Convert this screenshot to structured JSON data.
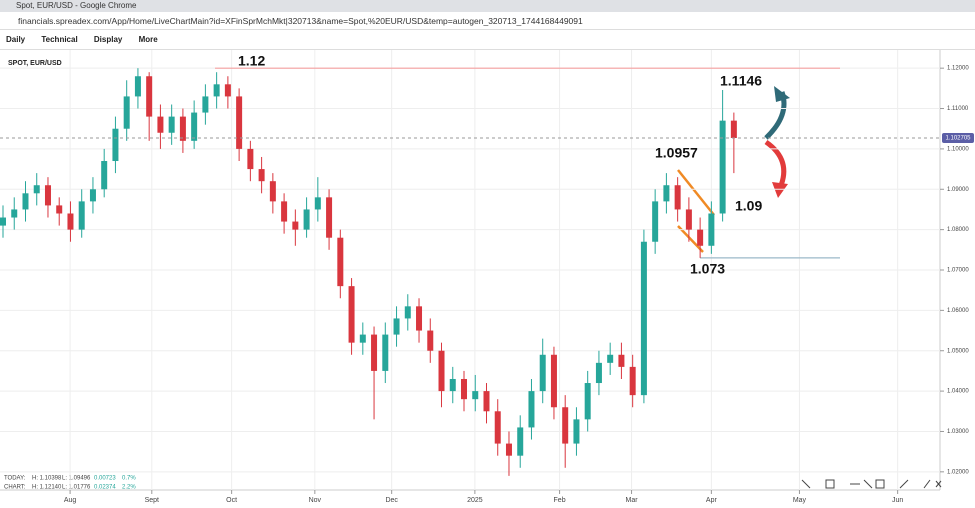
{
  "browser": {
    "title": "Spot, EUR/USD - Google Chrome",
    "url": "financials.spreadex.com/App/Home/LiveChartMain?id=XFinSprMchMkt|320713&name=Spot,%20EUR/USD&temp=autogen_320713_1744168449091"
  },
  "toolbar": [
    "Daily",
    "Technical",
    "Display",
    "More"
  ],
  "stats": {
    "today": [
      "TODAY:",
      "H: 1.10398",
      "L: 1.09496",
      "0.00723",
      "0.7%"
    ],
    "chart": [
      "CHART:",
      "H: 1.12140",
      "L: 1.01776",
      "0.02374",
      "2.2%"
    ]
  },
  "chart_data": {
    "type": "candlestick",
    "title": "SPOT, EUR/USD",
    "x": [
      0,
      3,
      6,
      9,
      12,
      15,
      18,
      21,
      24,
      27,
      30,
      33,
      36,
      39,
      42,
      45,
      48,
      51,
      54,
      57,
      60,
      63,
      66,
      69,
      72,
      75,
      78,
      81,
      84,
      87,
      90,
      93,
      96,
      99,
      102,
      105,
      108,
      111,
      114,
      117,
      120,
      123,
      126,
      129,
      132,
      135,
      138,
      141,
      144,
      147,
      150,
      153,
      156,
      159,
      162,
      165,
      168,
      171,
      174,
      177,
      180,
      183,
      186,
      189,
      192,
      195
    ],
    "open": [
      1.081,
      1.083,
      1.085,
      1.089,
      1.091,
      1.086,
      1.084,
      1.08,
      1.087,
      1.09,
      1.097,
      1.105,
      1.113,
      1.118,
      1.108,
      1.104,
      1.108,
      1.102,
      1.109,
      1.113,
      1.116,
      1.113,
      1.1,
      1.095,
      1.092,
      1.087,
      1.082,
      1.08,
      1.085,
      1.088,
      1.078,
      1.066,
      1.052,
      1.054,
      1.045,
      1.054,
      1.058,
      1.061,
      1.055,
      1.05,
      1.04,
      1.043,
      1.038,
      1.04,
      1.035,
      1.027,
      1.024,
      1.031,
      1.04,
      1.049,
      1.036,
      1.027,
      1.033,
      1.042,
      1.047,
      1.049,
      1.046,
      1.039,
      1.077,
      1.087,
      1.091,
      1.085,
      1.08,
      1.076,
      1.084,
      1.107
    ],
    "high": [
      1.086,
      1.088,
      1.092,
      1.094,
      1.093,
      1.088,
      1.087,
      1.09,
      1.093,
      1.1,
      1.108,
      1.117,
      1.12,
      1.119,
      1.111,
      1.111,
      1.11,
      1.112,
      1.116,
      1.119,
      1.118,
      1.115,
      1.102,
      1.098,
      1.094,
      1.089,
      1.085,
      1.088,
      1.093,
      1.09,
      1.08,
      1.068,
      1.057,
      1.056,
      1.057,
      1.061,
      1.064,
      1.063,
      1.058,
      1.052,
      1.046,
      1.045,
      1.044,
      1.042,
      1.038,
      1.03,
      1.034,
      1.043,
      1.053,
      1.051,
      1.039,
      1.036,
      1.045,
      1.05,
      1.052,
      1.052,
      1.049,
      1.08,
      1.09,
      1.094,
      1.093,
      1.088,
      1.083,
      1.087,
      1.1146,
      1.109
    ],
    "low": [
      1.078,
      1.08,
      1.082,
      1.086,
      1.083,
      1.081,
      1.077,
      1.078,
      1.084,
      1.088,
      1.094,
      1.102,
      1.11,
      1.102,
      1.1,
      1.101,
      1.099,
      1.1,
      1.106,
      1.11,
      1.11,
      1.097,
      1.092,
      1.089,
      1.084,
      1.079,
      1.076,
      1.078,
      1.082,
      1.075,
      1.063,
      1.049,
      1.049,
      1.033,
      1.042,
      1.051,
      1.055,
      1.052,
      1.047,
      1.036,
      1.037,
      1.035,
      1.035,
      1.032,
      1.024,
      1.019,
      1.021,
      1.028,
      1.037,
      1.033,
      1.021,
      1.024,
      1.03,
      1.039,
      1.044,
      1.043,
      1.036,
      1.037,
      1.074,
      1.084,
      1.082,
      1.077,
      1.073,
      1.074,
      1.082,
      1.094
    ],
    "close": [
      1.083,
      1.085,
      1.089,
      1.091,
      1.086,
      1.084,
      1.08,
      1.087,
      1.09,
      1.097,
      1.105,
      1.113,
      1.118,
      1.108,
      1.104,
      1.108,
      1.102,
      1.109,
      1.113,
      1.116,
      1.113,
      1.1,
      1.095,
      1.092,
      1.087,
      1.082,
      1.08,
      1.085,
      1.088,
      1.078,
      1.066,
      1.052,
      1.054,
      1.045,
      1.054,
      1.058,
      1.061,
      1.055,
      1.05,
      1.04,
      1.043,
      1.038,
      1.04,
      1.035,
      1.027,
      1.024,
      1.031,
      1.04,
      1.049,
      1.036,
      1.027,
      1.033,
      1.042,
      1.047,
      1.049,
      1.046,
      1.039,
      1.077,
      1.087,
      1.091,
      1.085,
      1.08,
      1.076,
      1.084,
      1.107,
      1.1027
    ],
    "up_color": "#26a69a",
    "down_color": "#d9363e",
    "xlim": [
      -0.8,
      250
    ],
    "ylim": [
      1.0155,
      1.1245
    ],
    "xticks": [
      {
        "value": 17.9,
        "label": "Aug"
      },
      {
        "value": 39.7,
        "label": "Sept"
      },
      {
        "value": 61,
        "label": "Oct"
      },
      {
        "value": 83.2,
        "label": "Nov"
      },
      {
        "value": 103.7,
        "label": "Dec"
      },
      {
        "value": 125.9,
        "label": "2025"
      },
      {
        "value": 148.5,
        "label": "Feb"
      },
      {
        "value": 167.7,
        "label": "Mar"
      },
      {
        "value": 189,
        "label": "Apr"
      },
      {
        "value": 212.5,
        "label": "May"
      },
      {
        "value": 238.7,
        "label": "Jun"
      }
    ],
    "yticks": [
      {
        "value": 1.02,
        "label": "1.02000"
      },
      {
        "value": 1.03,
        "label": "1.03000"
      },
      {
        "value": 1.04,
        "label": "1.04000"
      },
      {
        "value": 1.05,
        "label": "1.05000"
      },
      {
        "value": 1.06,
        "label": "1.06000"
      },
      {
        "value": 1.07,
        "label": "1.07000"
      },
      {
        "value": 1.08,
        "label": "1.08000"
      },
      {
        "value": 1.09,
        "label": "1.09000"
      },
      {
        "value": 1.1,
        "label": "1.10000"
      },
      {
        "value": 1.11,
        "label": "1.11000"
      },
      {
        "value": 1.12,
        "label": "1.12000"
      }
    ],
    "grid": true,
    "last_price": 1.102705,
    "resistance": 1.12,
    "support": 1.073,
    "annotations": [
      1.12,
      1.1146,
      1.0957,
      1.09,
      1.073
    ]
  }
}
